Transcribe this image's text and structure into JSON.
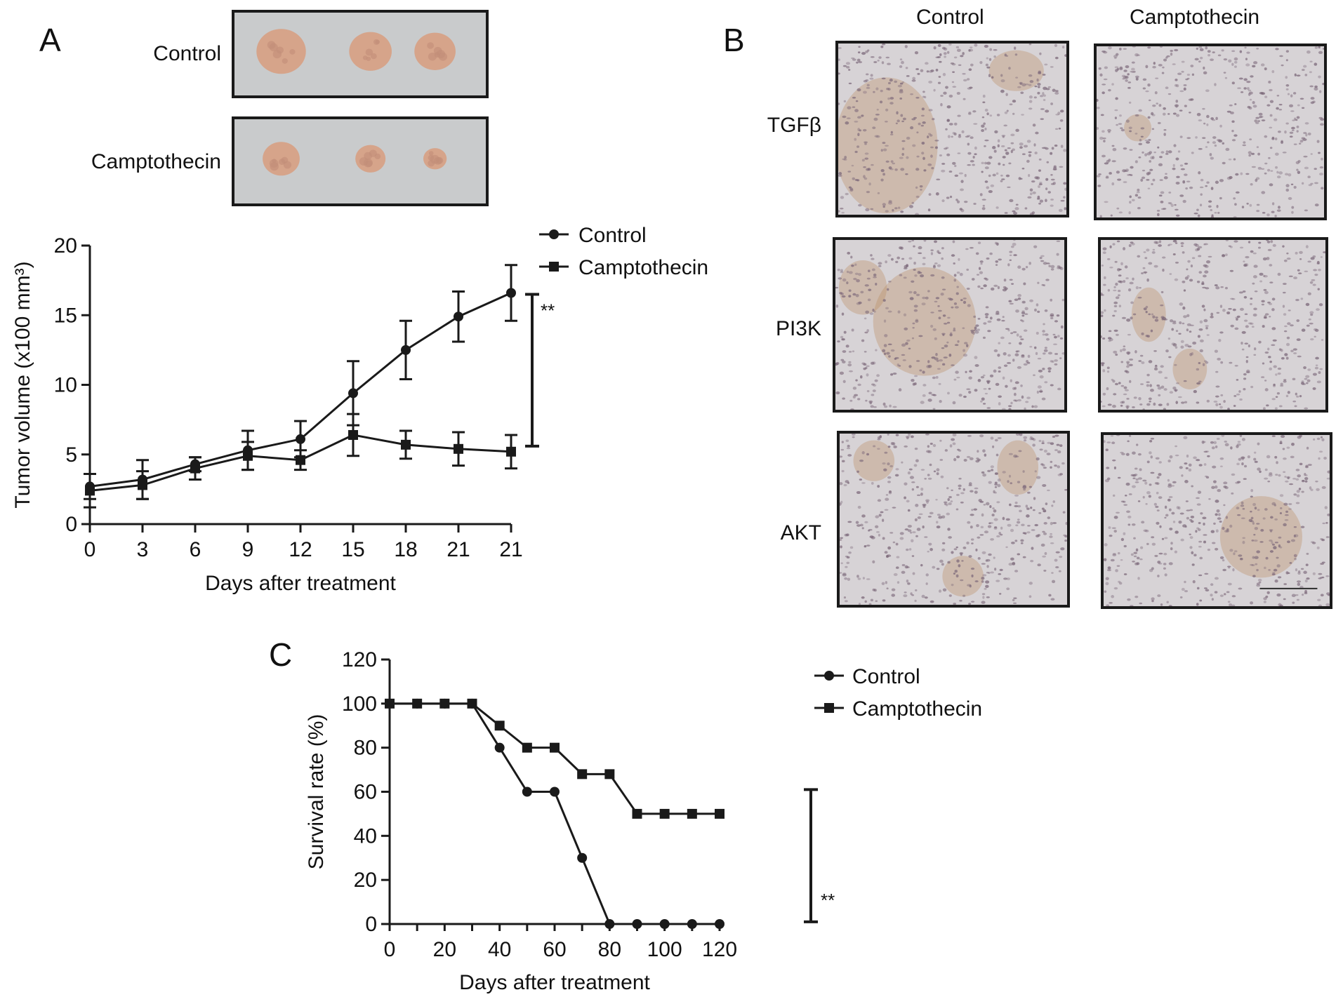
{
  "panels": {
    "a": "A",
    "b": "B",
    "c": "C"
  },
  "colors": {
    "ink": "#1a1a1a",
    "tissue_bg": "#d7d3d6",
    "nuclei": "#7a6678",
    "stain": "#b98d62",
    "tumor": "#d6a48a",
    "photo_bg": "#c9cbcc"
  },
  "panel_a": {
    "photo_labels": [
      "Control",
      "Camptothecin"
    ],
    "tumors_per_row": 3
  },
  "panel_b": {
    "col_labels": [
      "Control",
      "Camptothecin"
    ],
    "row_labels": [
      "TGFβ",
      "PI3K",
      "AKT"
    ]
  },
  "chart_data": [
    {
      "type": "line",
      "panel": "A",
      "x": [
        "0",
        "3",
        "6",
        "9",
        "12",
        "15",
        "18",
        "21",
        "21"
      ],
      "xlabel": "Days after treatment",
      "ylabel": "Tumor volume (x100 mm³)",
      "ylim": [
        0,
        20
      ],
      "yticks": [
        0,
        5,
        10,
        15,
        20
      ],
      "series": [
        {
          "name": "Control",
          "marker": "circle",
          "values": [
            2.7,
            3.2,
            4.3,
            5.3,
            6.1,
            9.4,
            12.5,
            14.9,
            16.6
          ],
          "errors": [
            0.9,
            1.4,
            0.5,
            1.4,
            1.3,
            2.3,
            2.1,
            1.8,
            2.0
          ]
        },
        {
          "name": "Camptothecin",
          "marker": "square",
          "values": [
            2.4,
            2.8,
            4.0,
            4.9,
            4.6,
            6.4,
            5.7,
            5.4,
            5.2
          ],
          "errors": [
            1.2,
            1.0,
            0.8,
            1.0,
            0.7,
            1.5,
            1.0,
            1.2,
            1.2
          ]
        }
      ],
      "significance": {
        "label": "**",
        "from": 5.6,
        "to": 16.5
      },
      "legend": "top-right"
    },
    {
      "type": "line",
      "panel": "C",
      "x": [
        0,
        10,
        20,
        30,
        40,
        50,
        60,
        70,
        80,
        90,
        100,
        110,
        120
      ],
      "xlabel": "Days after treatment",
      "ylabel": "Survival rate (%)",
      "xlim": [
        0,
        120
      ],
      "xticks": [
        0,
        20,
        40,
        60,
        80,
        100,
        120
      ],
      "ylim": [
        0,
        120
      ],
      "yticks": [
        0,
        20,
        40,
        60,
        80,
        100,
        120
      ],
      "series": [
        {
          "name": "Control",
          "marker": "circle",
          "values": [
            100,
            100,
            100,
            100,
            80,
            60,
            60,
            30,
            0,
            0,
            0,
            0,
            0
          ]
        },
        {
          "name": "Camptothecin",
          "marker": "square",
          "values": [
            100,
            100,
            100,
            100,
            90,
            80,
            80,
            68,
            68,
            50,
            50,
            50,
            50
          ]
        }
      ],
      "significance": {
        "label": "**",
        "from": 1,
        "to": 61
      },
      "legend": "top-right"
    }
  ]
}
